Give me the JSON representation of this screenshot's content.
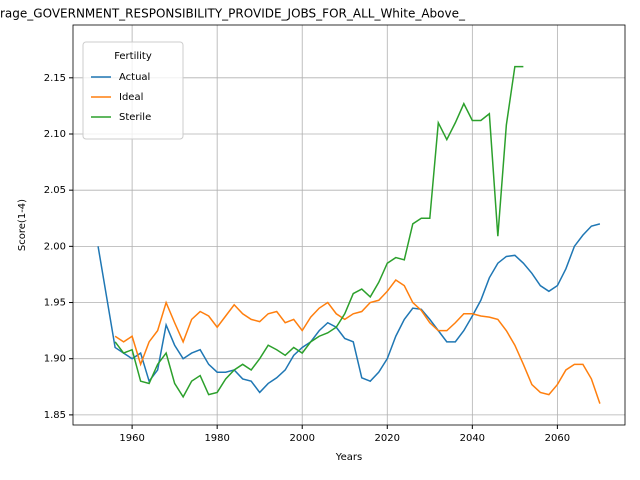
{
  "chart_data": {
    "type": "line",
    "title": "rage_GOVERNMENT_RESPONSIBILITY_PROVIDE_JOBS_FOR_ALL_White_Above_",
    "xlabel": "Years",
    "ylabel": "Score(1-4)",
    "x": [
      1952,
      1954,
      1956,
      1958,
      1960,
      1962,
      1964,
      1966,
      1968,
      1970,
      1972,
      1974,
      1976,
      1978,
      1980,
      1982,
      1984,
      1986,
      1988,
      1990,
      1992,
      1994,
      1996,
      1998,
      2000,
      2002,
      2004,
      2006,
      2008,
      2010,
      2012,
      2014,
      2016,
      2018,
      2020,
      2022,
      2024,
      2026,
      2028,
      2030,
      2032,
      2034,
      2036,
      2038,
      2040,
      2042,
      2044,
      2046,
      2048,
      2050,
      2052,
      2054,
      2056,
      2058,
      2060,
      2062,
      2064,
      2066,
      2068,
      2070
    ],
    "series": [
      {
        "name": "Actual",
        "color": "#1f77b4",
        "values": [
          2.0,
          1.955,
          1.91,
          1.905,
          1.9,
          1.905,
          1.88,
          1.89,
          1.93,
          1.912,
          1.9,
          1.905,
          1.908,
          1.895,
          1.888,
          1.888,
          1.89,
          1.882,
          1.88,
          1.87,
          1.878,
          1.883,
          1.89,
          1.903,
          1.91,
          1.915,
          1.925,
          1.932,
          1.928,
          1.918,
          1.915,
          1.883,
          1.88,
          1.888,
          1.9,
          1.92,
          1.935,
          1.945,
          1.944,
          1.935,
          1.925,
          1.915,
          1.915,
          1.925,
          1.938,
          1.952,
          1.972,
          1.985,
          1.991,
          1.992,
          1.985,
          1.976,
          1.965,
          1.96,
          1.965,
          1.98,
          2.0,
          2.01,
          2.018,
          2.02
        ]
      },
      {
        "name": "Ideal",
        "color": "#ff7f0e",
        "values": [
          null,
          null,
          1.92,
          1.915,
          1.92,
          1.895,
          1.915,
          1.925,
          1.95,
          1.932,
          1.915,
          1.935,
          1.942,
          1.938,
          1.928,
          1.938,
          1.948,
          1.94,
          1.935,
          1.933,
          1.94,
          1.942,
          1.932,
          1.935,
          1.925,
          1.937,
          1.945,
          1.95,
          1.94,
          1.935,
          1.94,
          1.942,
          1.95,
          1.952,
          1.96,
          1.97,
          1.965,
          1.95,
          1.943,
          1.932,
          1.925,
          1.925,
          1.932,
          1.94,
          1.94,
          1.938,
          1.937,
          1.935,
          1.925,
          1.912,
          1.895,
          1.877,
          1.87,
          1.868,
          1.877,
          1.89,
          1.895,
          1.895,
          1.882,
          1.86
        ]
      },
      {
        "name": "Sterile",
        "color": "#2ca02c",
        "values": [
          null,
          null,
          1.915,
          1.905,
          1.908,
          1.88,
          1.878,
          1.895,
          1.905,
          1.878,
          1.866,
          1.88,
          1.885,
          1.868,
          1.87,
          1.882,
          1.89,
          1.895,
          1.89,
          1.9,
          1.912,
          1.908,
          1.903,
          1.91,
          1.905,
          1.915,
          1.92,
          1.923,
          1.928,
          1.94,
          1.958,
          1.962,
          1.955,
          1.968,
          1.985,
          1.99,
          1.988,
          2.02,
          2.025,
          2.025,
          2.11,
          2.095,
          2.11,
          2.127,
          2.112,
          2.112,
          2.118,
          2.009,
          2.108,
          2.16,
          2.16,
          null,
          null,
          null,
          null,
          null,
          null,
          null,
          null,
          null
        ]
      }
    ],
    "legend_title": "Fertility",
    "legend": "upper left",
    "xlim": [
      1946.1,
      2075.9
    ],
    "xticks": [
      1960,
      1980,
      2000,
      2020,
      2040,
      2060
    ],
    "ylim": [
      1.841,
      2.197
    ],
    "yticks": [
      1.85,
      {
        "value": 1.9,
        "label": "1.90"
      },
      1.95,
      {
        "value": 2.0,
        "label": "2.00"
      },
      2.05,
      {
        "value": 2.1,
        "label": "2.10"
      },
      2.15
    ],
    "grid": true
  }
}
